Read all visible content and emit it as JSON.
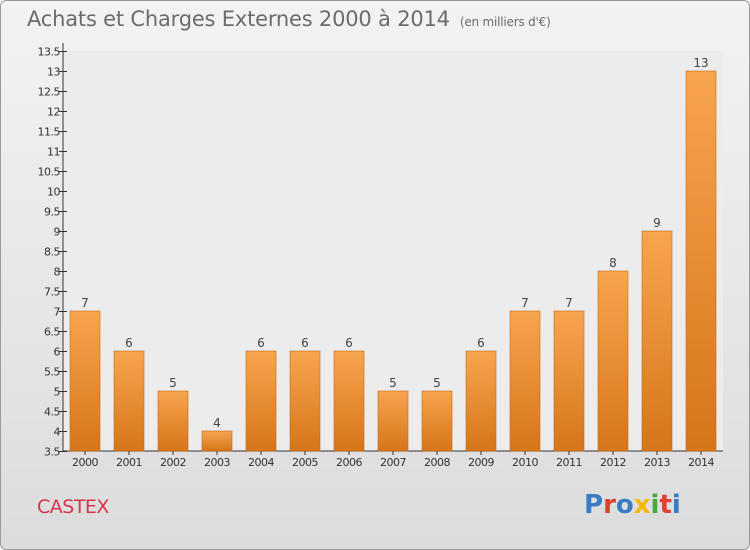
{
  "header": {
    "title": "Achats et Charges Externes 2000 à 2014",
    "subtitle": "(en milliers d'€)"
  },
  "footer": {
    "town": "CASTEX",
    "logo": "Proxiti"
  },
  "colors": {
    "bar_top": "#f7a54e",
    "bar_bottom": "#d67519",
    "title": "#6b6b6b",
    "town": "#d8344c",
    "logo_letters": [
      "#3a7cc4",
      "#e0402e",
      "#3a7cc4",
      "#f5b800",
      "#4aa83a",
      "#e0402e",
      "#3a7cc4"
    ]
  },
  "chart_data": {
    "type": "bar",
    "categories": [
      "2000",
      "2001",
      "2002",
      "2003",
      "2004",
      "2005",
      "2006",
      "2007",
      "2008",
      "2009",
      "2010",
      "2011",
      "2012",
      "2013",
      "2014"
    ],
    "values": [
      7,
      6,
      5,
      4,
      6,
      6,
      6,
      5,
      5,
      6,
      7,
      7,
      8,
      9,
      13
    ],
    "data_labels": [
      "7",
      "6",
      "5",
      "4",
      "6",
      "6",
      "6",
      "5",
      "5",
      "6",
      "7",
      "7",
      "8",
      "9",
      "13"
    ],
    "y_ticks": [
      "3.5",
      "4",
      "4.5",
      "5",
      "5.5",
      "6",
      "6.5",
      "7",
      "7.5",
      "8",
      "8.5",
      "9",
      "9.5",
      "10",
      "10.5",
      "11",
      "11.5",
      "12",
      "12.5",
      "13",
      "13.5"
    ],
    "ylim": [
      3.5,
      13.5
    ],
    "grid": false,
    "xlabel": "",
    "ylabel": ""
  }
}
